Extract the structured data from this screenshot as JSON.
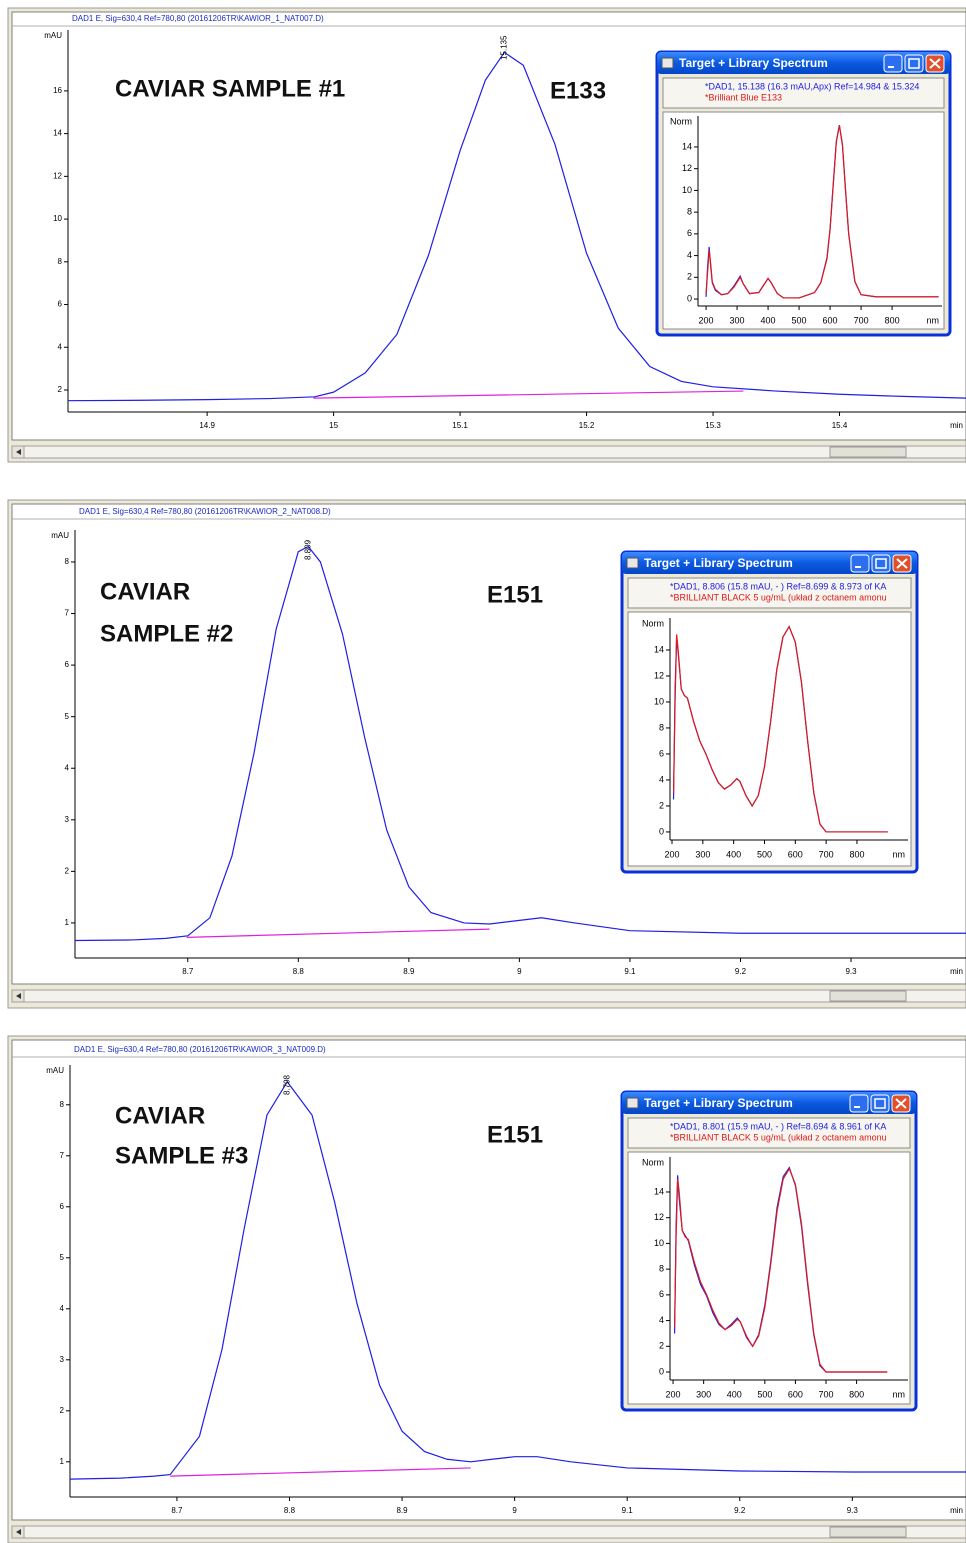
{
  "chart_data": [
    {
      "type": "line",
      "title": "DAD1 E, Sig=630,4 Ref=780,80 (20161206TR\\KAWIOR_1_NAT007.D)",
      "sample_label": [
        "CAVIAR SAMPLE #1"
      ],
      "dye_label": "E133",
      "peak_time": 15.135,
      "xlabel": "min",
      "ylabel": "mAU",
      "xlim": [
        14.79,
        15.5
      ],
      "ylim": [
        0.97,
        18.85
      ],
      "xticks": [
        14.9,
        15,
        15.1,
        15.2,
        15.3,
        15.4
      ],
      "yticks": [
        2,
        4,
        6,
        8,
        10,
        12,
        14,
        16
      ],
      "series": [
        {
          "color": "#1f1fe6",
          "x": [
            14.79,
            14.85,
            14.9,
            14.95,
            14.985,
            15.0,
            15.025,
            15.05,
            15.075,
            15.1,
            15.12,
            15.135,
            15.15,
            15.175,
            15.2,
            15.225,
            15.25,
            15.275,
            15.3,
            15.35,
            15.4,
            15.45,
            15.5
          ],
          "values": [
            1.5,
            1.52,
            1.55,
            1.6,
            1.68,
            1.9,
            2.8,
            4.6,
            8.3,
            13.2,
            16.5,
            17.8,
            17.2,
            13.5,
            8.4,
            4.9,
            3.1,
            2.4,
            2.15,
            1.95,
            1.8,
            1.7,
            1.62
          ]
        },
        {
          "color": "#e020e0",
          "x": [
            14.984,
            15.324
          ],
          "values": [
            1.62,
            1.95
          ]
        }
      ]
    },
    {
      "type": "line",
      "title": "Target + Library Spectrum",
      "xlabel": "nm",
      "ylabel": "Norm",
      "xlim": [
        174,
        961
      ],
      "ylim": [
        -0.64,
        16.85
      ],
      "xticks": [
        200,
        300,
        400,
        500,
        600,
        700,
        800
      ],
      "yticks": [
        0,
        2,
        4,
        6,
        8,
        10,
        12,
        14
      ],
      "series": [
        {
          "name": "*DAD1, 15.138 (16.3 mAU,Apx) Ref=14.984 & 15.324",
          "color": "#2020e0",
          "x": [
            200,
            205,
            210,
            215,
            220,
            230,
            250,
            270,
            290,
            310,
            320,
            340,
            370,
            400,
            410,
            430,
            450,
            500,
            550,
            570,
            590,
            600,
            610,
            620,
            630,
            640,
            650,
            660,
            680,
            700,
            750,
            800,
            850,
            900,
            950
          ],
          "values": [
            0.2,
            3,
            4.8,
            3,
            1.5,
            0.8,
            0.4,
            0.5,
            1.2,
            2.1,
            1.4,
            0.5,
            0.6,
            1.9,
            1.5,
            0.5,
            0.1,
            0.1,
            0.6,
            1.5,
            3.8,
            6.5,
            10.5,
            14.5,
            16,
            14.2,
            10,
            6,
            1.6,
            0.4,
            0.2,
            0.2,
            0.2,
            0.2,
            0.2
          ]
        },
        {
          "name": "*Brilliant Blue E133",
          "color": "#e01a1a",
          "x": [
            200,
            205,
            210,
            215,
            220,
            230,
            250,
            270,
            290,
            310,
            320,
            340,
            370,
            400,
            410,
            430,
            450,
            500,
            550,
            570,
            590,
            600,
            610,
            620,
            630,
            640,
            650,
            660,
            680,
            700,
            750,
            800,
            850,
            900,
            950
          ],
          "values": [
            0.5,
            2.5,
            4.5,
            3.2,
            1.6,
            0.9,
            0.4,
            0.5,
            1.1,
            2.0,
            1.4,
            0.5,
            0.6,
            1.9,
            1.5,
            0.5,
            0.1,
            0.1,
            0.6,
            1.5,
            3.7,
            6.4,
            10.4,
            14.4,
            16,
            14.1,
            9.9,
            6,
            1.6,
            0.4,
            0.2,
            0.2,
            0.2,
            0.2,
            0.2
          ]
        }
      ]
    },
    {
      "type": "line",
      "title": "DAD1 E, Sig=630,4 Ref=780,80 (20161206TR\\KAWIOR_2_NAT008.D)",
      "sample_label": [
        "CAVIAR",
        "SAMPLE #2"
      ],
      "dye_label": "E151",
      "peak_time": 8.809,
      "xlabel": "min",
      "ylabel": "mAU",
      "xlim": [
        8.598,
        9.404
      ],
      "ylim": [
        0.32,
        8.62
      ],
      "xticks": [
        8.7,
        8.8,
        8.9,
        9,
        9.1,
        9.2,
        9.3
      ],
      "yticks": [
        1,
        2,
        3,
        4,
        5,
        6,
        7,
        8
      ],
      "series": [
        {
          "color": "#1f1fe6",
          "x": [
            8.598,
            8.65,
            8.68,
            8.7,
            8.72,
            8.74,
            8.76,
            8.78,
            8.8,
            8.809,
            8.82,
            8.84,
            8.86,
            8.88,
            8.9,
            8.92,
            8.95,
            8.973,
            9.0,
            9.02,
            9.05,
            9.1,
            9.2,
            9.3,
            9.404
          ],
          "values": [
            0.66,
            0.67,
            0.7,
            0.75,
            1.1,
            2.3,
            4.3,
            6.7,
            8.2,
            8.3,
            8.0,
            6.6,
            4.6,
            2.8,
            1.7,
            1.2,
            1.0,
            0.98,
            1.05,
            1.1,
            1.0,
            0.85,
            0.8,
            0.8,
            0.8
          ]
        },
        {
          "color": "#e020e0",
          "x": [
            8.699,
            8.973
          ],
          "values": [
            0.72,
            0.88
          ]
        }
      ]
    },
    {
      "type": "line",
      "title": "Target + Library Spectrum",
      "xlabel": "nm",
      "ylabel": "Norm",
      "xlim": [
        193.5,
        965.6
      ],
      "ylim": [
        -0.62,
        16.46
      ],
      "xticks": [
        200,
        300,
        400,
        500,
        600,
        700,
        800
      ],
      "yticks": [
        0,
        2,
        4,
        6,
        8,
        10,
        12,
        14
      ],
      "series": [
        {
          "name": "*DAD1, 8.806 (15.8 mAU, - ) Ref=8.699 & 8.973 of KA",
          "color": "#2020e0",
          "x": [
            205,
            210,
            215,
            220,
            230,
            240,
            250,
            270,
            290,
            310,
            330,
            350,
            370,
            390,
            410,
            420,
            440,
            460,
            480,
            500,
            520,
            540,
            560,
            580,
            600,
            620,
            640,
            660,
            680,
            700,
            750,
            800,
            850,
            900
          ],
          "values": [
            2.5,
            11,
            15,
            13.8,
            11,
            10.5,
            10.3,
            8.5,
            7,
            6,
            4.8,
            3.8,
            3.3,
            3.6,
            4.1,
            3.9,
            2.8,
            2,
            2.8,
            5,
            8.5,
            12.5,
            15,
            15.8,
            14.6,
            11.5,
            7,
            3,
            0.6,
            0,
            0,
            0,
            0,
            0
          ]
        },
        {
          "name": "*BRILLIANT BLACK 5 ug/mL (układ z octanem amonu",
          "color": "#e01a1a",
          "x": [
            205,
            210,
            215,
            220,
            230,
            240,
            250,
            270,
            290,
            310,
            330,
            350,
            370,
            390,
            410,
            420,
            440,
            460,
            480,
            500,
            520,
            540,
            560,
            580,
            600,
            620,
            640,
            660,
            680,
            700,
            750,
            800,
            850,
            900
          ],
          "values": [
            3,
            10,
            15.2,
            14,
            11,
            10.5,
            10.3,
            8.5,
            7,
            6,
            4.8,
            3.8,
            3.3,
            3.6,
            4.1,
            3.9,
            2.8,
            2,
            2.8,
            5,
            8.5,
            12.5,
            15,
            15.8,
            14.6,
            11.5,
            7,
            3,
            0.6,
            0,
            0,
            0,
            0,
            0
          ]
        }
      ]
    },
    {
      "type": "line",
      "title": "DAD1 E, Sig=630,4 Ref=780,80 (20161206TR\\KAWIOR_3_NAT009.D)",
      "sample_label": [
        "CAVIAR",
        "SAMPLE #3"
      ],
      "dye_label": "E151",
      "peak_time": 8.798,
      "xlabel": "min",
      "ylabel": "mAU",
      "xlim": [
        8.605,
        9.401
      ],
      "ylim": [
        0.31,
        8.78
      ],
      "xticks": [
        8.7,
        8.8,
        8.9,
        9,
        9.1,
        9.2,
        9.3
      ],
      "yticks": [
        1,
        2,
        3,
        4,
        5,
        6,
        7,
        8
      ],
      "series": [
        {
          "color": "#1f1fe6",
          "x": [
            8.605,
            8.65,
            8.68,
            8.694,
            8.72,
            8.74,
            8.76,
            8.78,
            8.798,
            8.82,
            8.84,
            8.86,
            8.88,
            8.9,
            8.92,
            8.94,
            8.961,
            8.98,
            9.0,
            9.02,
            9.05,
            9.1,
            9.2,
            9.3,
            9.401
          ],
          "values": [
            0.66,
            0.68,
            0.72,
            0.75,
            1.5,
            3.2,
            5.6,
            7.8,
            8.45,
            7.8,
            6.1,
            4.1,
            2.5,
            1.6,
            1.2,
            1.05,
            1.0,
            1.05,
            1.1,
            1.1,
            1.0,
            0.88,
            0.82,
            0.8,
            0.8
          ]
        },
        {
          "color": "#e020e0",
          "x": [
            8.694,
            8.961
          ],
          "values": [
            0.72,
            0.88
          ]
        }
      ]
    },
    {
      "type": "line",
      "title": "Target + Library Spectrum",
      "xlabel": "nm",
      "ylabel": "Norm",
      "xlim": [
        190,
        968
      ],
      "ylim": [
        -0.62,
        16.72
      ],
      "xticks": [
        200,
        300,
        400,
        500,
        600,
        700,
        800
      ],
      "yticks": [
        0,
        2,
        4,
        6,
        8,
        10,
        12,
        14
      ],
      "series": [
        {
          "name": "*DAD1, 8.801 (15.9 mAU, - ) Ref=8.694 & 8.961 of KA",
          "color": "#2020e0",
          "x": [
            205,
            210,
            215,
            220,
            230,
            240,
            250,
            270,
            290,
            310,
            330,
            350,
            370,
            390,
            410,
            420,
            440,
            460,
            480,
            500,
            520,
            540,
            560,
            580,
            600,
            620,
            640,
            660,
            680,
            700,
            750,
            800,
            850,
            900
          ],
          "values": [
            3,
            11.5,
            15.3,
            13.5,
            11,
            10.6,
            10.2,
            8.3,
            6.8,
            5.9,
            4.6,
            3.7,
            3.3,
            3.7,
            4.2,
            3.9,
            2.7,
            2,
            2.9,
            5.2,
            8.7,
            12.8,
            15.2,
            15.9,
            14.5,
            11.3,
            6.8,
            2.9,
            0.5,
            0,
            0,
            0,
            0,
            0
          ]
        },
        {
          "name": "*BRILLIANT BLACK 5 ug/mL (układ z octanem amonu",
          "color": "#e01a1a",
          "x": [
            205,
            210,
            215,
            220,
            230,
            240,
            250,
            270,
            290,
            310,
            330,
            350,
            370,
            390,
            410,
            420,
            440,
            460,
            480,
            500,
            520,
            540,
            560,
            580,
            600,
            620,
            640,
            660,
            680,
            700,
            750,
            800,
            850,
            900
          ],
          "values": [
            3.5,
            10.5,
            15,
            14,
            11,
            10.5,
            10.3,
            8.5,
            7,
            6,
            4.8,
            3.8,
            3.3,
            3.6,
            4.1,
            3.9,
            2.8,
            2,
            2.8,
            5,
            8.5,
            12.5,
            15,
            15.8,
            14.6,
            11.5,
            7,
            3,
            0.6,
            0,
            0,
            0,
            0,
            0
          ]
        }
      ]
    }
  ]
}
